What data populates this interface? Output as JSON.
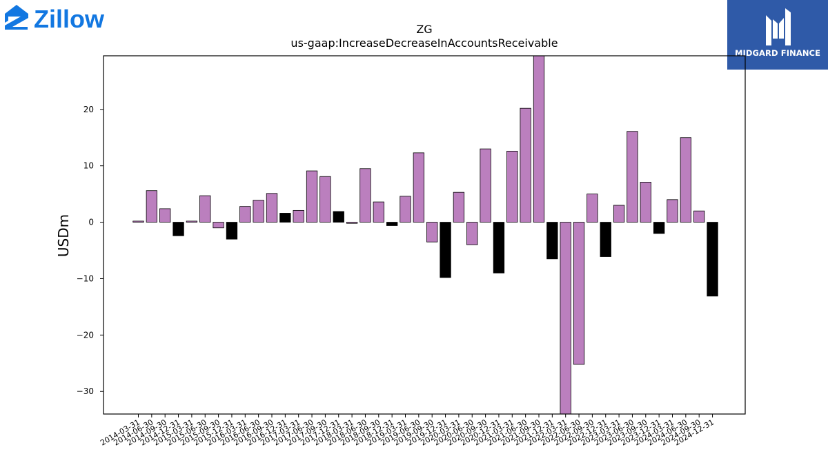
{
  "logos": {
    "left_brand": "Zillow",
    "right_brand": "MIDGARD FINANCE"
  },
  "colors": {
    "positive": "#bb7fbe",
    "negative": "#000000",
    "zillow_blue": "#1277e1",
    "midgard_bg": "#2f5aa8"
  },
  "chart_data": {
    "type": "bar",
    "title": "ZG",
    "subtitle": "us-gaap:IncreaseDecreaseInAccountsReceivable",
    "xlabel": "",
    "ylabel": "USDm",
    "ylim": [
      -34,
      29.5
    ],
    "yticks": [
      -30,
      -20,
      -10,
      0,
      10,
      20
    ],
    "ytick_labels": [
      "−30",
      "−20",
      "−10",
      "0",
      "10",
      "20"
    ],
    "grid": false,
    "categories": [
      "2014-03-31",
      "2014-06-30",
      "2014-09-30",
      "2014-12-31",
      "2015-03-31",
      "2015-06-30",
      "2015-09-30",
      "2015-12-31",
      "2016-03-31",
      "2016-06-30",
      "2016-09-30",
      "2016-12-31",
      "2017-03-31",
      "2017-06-30",
      "2017-09-30",
      "2017-12-31",
      "2018-03-31",
      "2018-06-30",
      "2018-09-30",
      "2018-12-31",
      "2019-03-31",
      "2019-06-30",
      "2019-09-30",
      "2019-12-31",
      "2020-03-31",
      "2020-06-30",
      "2020-09-30",
      "2020-12-31",
      "2021-03-31",
      "2021-06-30",
      "2021-09-30",
      "2021-12-31",
      "2022-03-31",
      "2022-06-30",
      "2022-09-30",
      "2022-12-31",
      "2023-03-31",
      "2023-06-30",
      "2023-09-30",
      "2023-12-31",
      "2024-03-31",
      "2024-06-30",
      "2024-09-30",
      "2024-12-31"
    ],
    "values": [
      0.2,
      5.6,
      2.4,
      -2.4,
      0.2,
      4.7,
      -1.0,
      -3.0,
      2.8,
      3.9,
      5.1,
      1.6,
      2.1,
      9.1,
      8.1,
      1.9,
      -0.2,
      9.5,
      3.6,
      -0.6,
      4.6,
      12.3,
      -3.5,
      -9.8,
      5.3,
      -4.0,
      13.0,
      -9.0,
      12.6,
      20.2,
      29.5,
      -6.5,
      -34.0,
      -25.2,
      5.0,
      -6.1,
      3.0,
      16.1,
      7.1,
      -2.0,
      4.0,
      15.0,
      2.0,
      -13.1
    ],
    "bar_colors": [
      "positive",
      "positive",
      "positive",
      "negative",
      "positive",
      "positive",
      "positive",
      "negative",
      "positive",
      "positive",
      "positive",
      "negative",
      "positive",
      "positive",
      "positive",
      "negative",
      "positive",
      "positive",
      "positive",
      "negative",
      "positive",
      "positive",
      "positive",
      "negative",
      "positive",
      "positive",
      "positive",
      "negative",
      "positive",
      "positive",
      "positive",
      "negative",
      "positive",
      "positive",
      "positive",
      "negative",
      "positive",
      "positive",
      "positive",
      "negative",
      "positive",
      "positive",
      "positive",
      "negative"
    ]
  }
}
